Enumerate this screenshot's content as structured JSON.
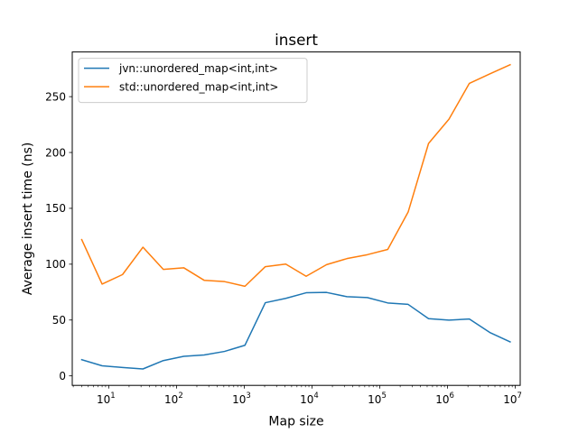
{
  "chart_data": {
    "type": "line",
    "title": "insert",
    "xlabel": "Map size",
    "ylabel": "Average insert time (ns)",
    "xscale": "log",
    "xlim": [
      2.9,
      11800000
    ],
    "ylim": [
      -8.5,
      290
    ],
    "xticks": [
      {
        "value": 10,
        "base": "10",
        "exp": "1"
      },
      {
        "value": 100,
        "base": "10",
        "exp": "2"
      },
      {
        "value": 1000,
        "base": "10",
        "exp": "3"
      },
      {
        "value": 10000,
        "base": "10",
        "exp": "4"
      },
      {
        "value": 100000,
        "base": "10",
        "exp": "5"
      },
      {
        "value": 1000000,
        "base": "10",
        "exp": "6"
      },
      {
        "value": 10000000,
        "base": "10",
        "exp": "7"
      }
    ],
    "yticks": [
      {
        "value": 0,
        "label": "0"
      },
      {
        "value": 50,
        "label": "50"
      },
      {
        "value": 100,
        "label": "100"
      },
      {
        "value": 150,
        "label": "150"
      },
      {
        "value": 200,
        "label": "200"
      },
      {
        "value": 250,
        "label": "250"
      }
    ],
    "x": [
      4,
      8,
      16,
      32,
      64,
      128,
      256,
      512,
      1024,
      2048,
      4096,
      8192,
      16384,
      32768,
      65536,
      131072,
      262144,
      524288,
      1048576,
      2097152,
      4194304,
      8388608
    ],
    "grid": false,
    "legend": "upper left",
    "series": [
      {
        "name": "jvn::unordered_map<int,int>",
        "color": "#1f77b4",
        "values": [
          14.5,
          9,
          7.5,
          6.2,
          13.7,
          17.5,
          18.7,
          21.9,
          27.4,
          65.5,
          69.4,
          74.4,
          74.7,
          70.9,
          70.1,
          65.3,
          64.0,
          51.2,
          49.9,
          50.9,
          38.9,
          30.4
        ]
      },
      {
        "name": "std::unordered_map<int,int>",
        "color": "#ff7f0e",
        "values": [
          122,
          82.2,
          90.7,
          115.2,
          95.3,
          96.8,
          85.6,
          84.4,
          80.2,
          97.8,
          100.1,
          89.2,
          99.6,
          105.0,
          108.5,
          113.2,
          146.7,
          208.1,
          229.8,
          261.9,
          270.3,
          278.6
        ]
      }
    ]
  }
}
